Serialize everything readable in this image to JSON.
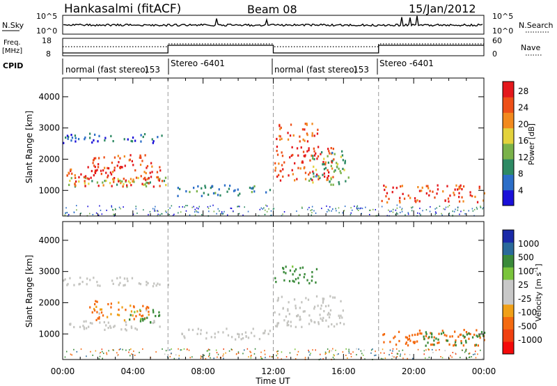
{
  "header": {
    "station": "Hankasalmi (fitACF)",
    "beam": "Beam 08",
    "date": "15/Jan/2012"
  },
  "panels": {
    "nsky_label": "N.Sky",
    "nsearch_label": "N.Search",
    "nsky_ticks": [
      "10^5",
      "10^0"
    ],
    "nsearch_ticks": [
      "10^5",
      "10^0"
    ],
    "freq_label_1": "Freq.",
    "freq_label_2": "[MHz]",
    "freq_ticks": [
      "18",
      "8"
    ],
    "nave_label": "Nave",
    "nave_ticks": [
      "60",
      "0"
    ],
    "cpid_label": "CPID",
    "cpid_segments": [
      {
        "label": "normal (fast stereo)",
        "id": "153"
      },
      {
        "label": "Stereo",
        "id": "-6401"
      },
      {
        "label": "normal (fast stereo)",
        "id": "153"
      },
      {
        "label": "Stereo",
        "id": "-6401"
      }
    ]
  },
  "colors": {
    "power_scale": [
      "#1a10d8",
      "#2c6ec8",
      "#2e8a64",
      "#7ab24a",
      "#e3d23c",
      "#f28a1e",
      "#ee5018",
      "#e4181c"
    ],
    "velocity_scale": [
      "#f40a0a",
      "#f04010",
      "#f46a10",
      "#f0a018",
      "#c8c8c8",
      "#c8c8c8",
      "#7ac43c",
      "#3a8a3a",
      "#2a6a9a",
      "#1a2aa8"
    ],
    "ground_scatter": "#c4c4c0"
  },
  "chart_data": [
    {
      "type": "heatmap",
      "title": "Power",
      "xlabel": "Time UT",
      "ylabel": "Slant Range [km]",
      "xlim": [
        "00:00",
        "24:00"
      ],
      "ylim": [
        180,
        4600
      ],
      "x_ticks": [
        "00:00",
        "04:00",
        "08:00",
        "12:00",
        "16:00",
        "20:00",
        "00:00"
      ],
      "y_ticks": [
        "1000",
        "2000",
        "3000",
        "4000"
      ],
      "colorbar": {
        "label": "Power [dB]",
        "ticks": [
          "4",
          "8",
          "12",
          "16",
          "20",
          "24",
          "28"
        ],
        "range": [
          0,
          30
        ]
      },
      "mode_switch_times_hours": [
        6,
        12,
        18
      ],
      "regions": [
        {
          "t": [
            0,
            6
          ],
          "r": [
            2550,
            2850
          ],
          "value": 6
        },
        {
          "t": [
            0,
            6
          ],
          "r": [
            1150,
            1450
          ],
          "value": 14
        },
        {
          "t": [
            0.2,
            5.8
          ],
          "r": [
            1150,
            1850
          ],
          "value": 26
        },
        {
          "t": [
            1.5,
            3.2
          ],
          "r": [
            1500,
            2100
          ],
          "value": 27
        },
        {
          "t": [
            3.0,
            5.0
          ],
          "r": [
            1850,
            2200
          ],
          "value": 24
        },
        {
          "t": [
            6.5,
            11.8
          ],
          "r": [
            850,
            1200
          ],
          "value": 8
        },
        {
          "t": [
            12,
            14.5
          ],
          "r": [
            2600,
            3200
          ],
          "value": 24
        },
        {
          "t": [
            12,
            15.5
          ],
          "r": [
            1350,
            2450
          ],
          "value": 26
        },
        {
          "t": [
            14.0,
            16.3
          ],
          "r": [
            1200,
            2300
          ],
          "value": 12
        },
        {
          "t": [
            18.1,
            24
          ],
          "r": [
            650,
            1200
          ],
          "value": 25
        }
      ]
    },
    {
      "type": "heatmap",
      "title": "Velocity",
      "xlabel": "Time UT",
      "ylabel": "Slant Range [km]",
      "xlim": [
        "00:00",
        "24:00"
      ],
      "ylim": [
        180,
        4600
      ],
      "x_ticks": [
        "00:00",
        "04:00",
        "08:00",
        "12:00",
        "16:00",
        "20:00",
        "00:00"
      ],
      "y_ticks": [
        "1000",
        "2000",
        "3000",
        "4000"
      ],
      "colorbar": {
        "label": "Velocity [m s^-1]",
        "ticks": [
          "1000",
          "500",
          "100",
          "25",
          "-25",
          "-100",
          "-500",
          "-1000"
        ],
        "range": [
          -1000,
          1000
        ]
      },
      "mode_switch_times_hours": [
        6,
        12,
        18
      ],
      "regions": [
        {
          "t": [
            0,
            6
          ],
          "r": [
            2550,
            2850
          ],
          "value": 0
        },
        {
          "t": [
            0.2,
            5.8
          ],
          "r": [
            1150,
            1450
          ],
          "value": 0
        },
        {
          "t": [
            1.5,
            5.0
          ],
          "r": [
            1450,
            2100
          ],
          "value": -150
        },
        {
          "t": [
            3.5,
            5.5
          ],
          "r": [
            1400,
            1800
          ],
          "value": 200
        },
        {
          "t": [
            6.5,
            11.8
          ],
          "r": [
            850,
            1200
          ],
          "value": 0
        },
        {
          "t": [
            12,
            14.5
          ],
          "r": [
            2650,
            3200
          ],
          "value": 200
        },
        {
          "t": [
            12,
            16.0
          ],
          "r": [
            1250,
            2250
          ],
          "value": 0
        },
        {
          "t": [
            18.2,
            24
          ],
          "r": [
            650,
            1200
          ],
          "value": -300
        },
        {
          "t": [
            20.5,
            24
          ],
          "r": [
            650,
            1100
          ],
          "value": 300
        }
      ]
    }
  ]
}
